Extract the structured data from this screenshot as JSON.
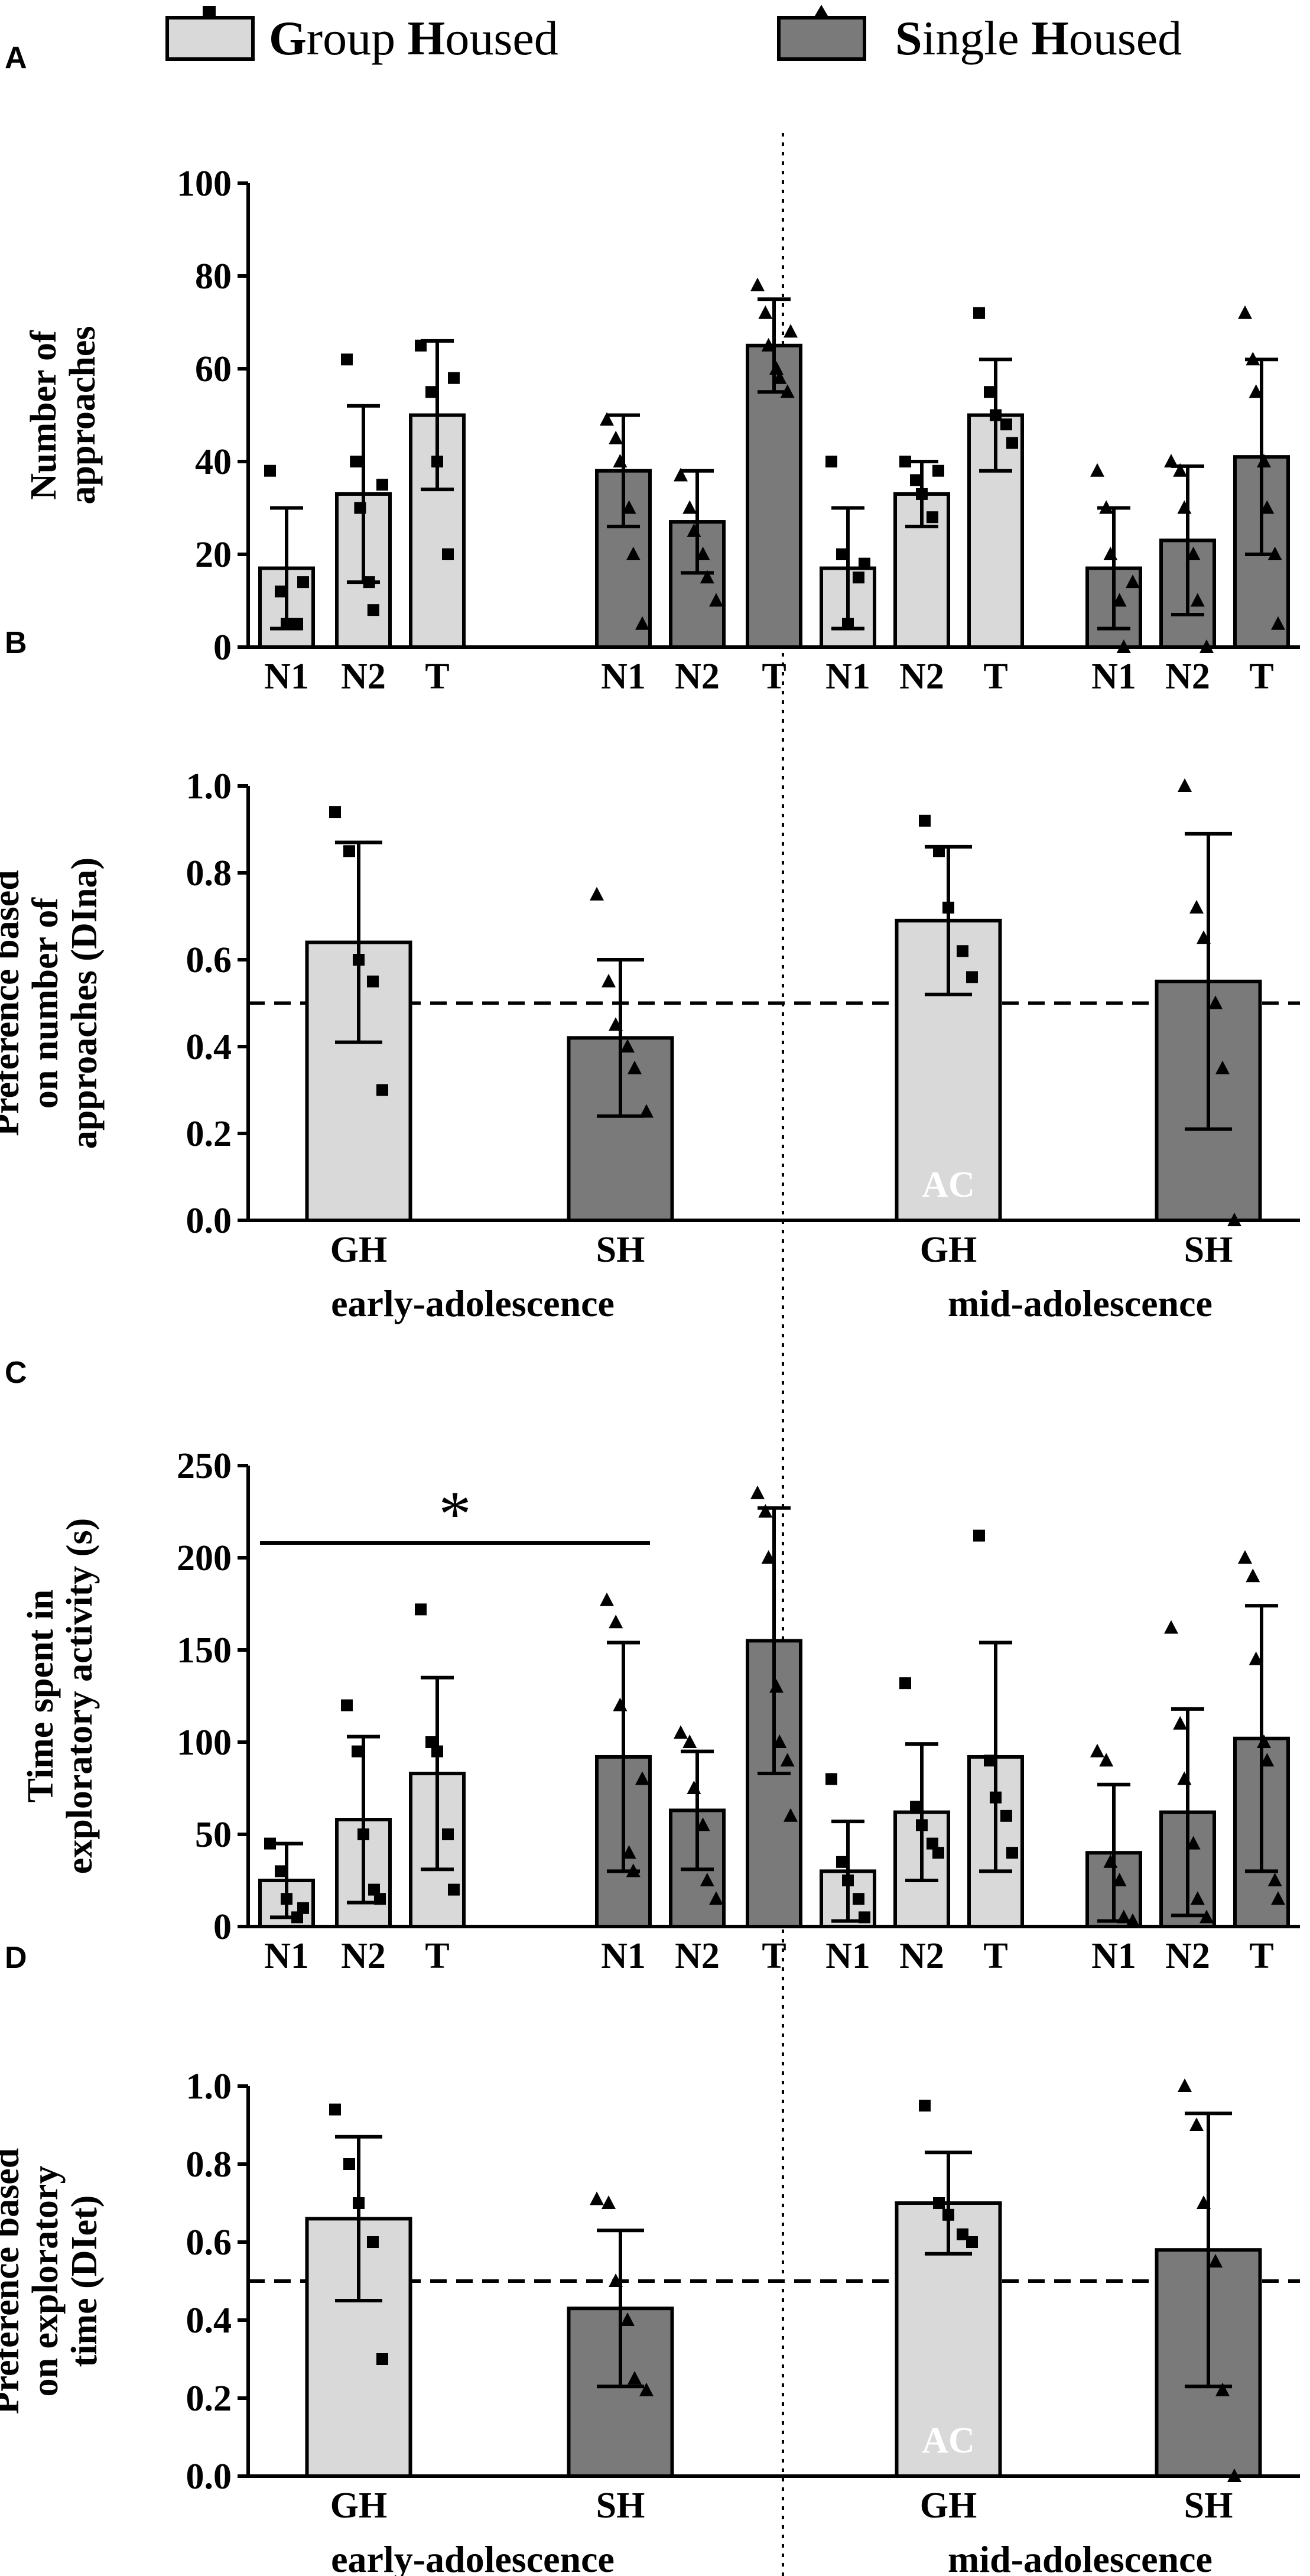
{
  "legend": {
    "gh_label_parts": [
      "G",
      "roup ",
      "H",
      "oused"
    ],
    "sh_label_parts": [
      "S",
      "ingle ",
      "H",
      "oused"
    ]
  },
  "colors": {
    "gh_fill": "#d9d9d9",
    "sh_fill": "#7a7a7a",
    "stroke": "#000000"
  },
  "chart_data": [
    {
      "panel": "A",
      "type": "bar",
      "ylabel": [
        "Number of",
        "approaches"
      ],
      "ylim": [
        0,
        100
      ],
      "yticks": [
        0,
        20,
        40,
        60,
        80,
        100
      ],
      "categories": [
        "N1",
        "N2",
        "T",
        "N1",
        "N2",
        "T",
        "N1",
        "N2",
        "T",
        "N1",
        "N2",
        "T"
      ],
      "groups": [
        "GH",
        "GH",
        "GH",
        "SH",
        "SH",
        "SH",
        "GH",
        "GH",
        "GH",
        "SH",
        "SH",
        "SH"
      ],
      "values": [
        17,
        33,
        50,
        38,
        27,
        65,
        17,
        33,
        50,
        17,
        23,
        41
      ],
      "sd": [
        13,
        19,
        16,
        12,
        11,
        10,
        13,
        7,
        12,
        13,
        16,
        21
      ],
      "points": [
        [
          38,
          12,
          5,
          5,
          14
        ],
        [
          62,
          40,
          30,
          14,
          8,
          35
        ],
        [
          65,
          55,
          40,
          20,
          58
        ],
        [
          49,
          45,
          40,
          30,
          20,
          5
        ],
        [
          37,
          30,
          25,
          20,
          15,
          10
        ],
        [
          78,
          72,
          65,
          60,
          58,
          55,
          68
        ],
        [
          40,
          20,
          5,
          15,
          18
        ],
        [
          40,
          36,
          33,
          28,
          38
        ],
        [
          72,
          55,
          50,
          48,
          44
        ],
        [
          38,
          30,
          20,
          10,
          0,
          14
        ],
        [
          40,
          38,
          30,
          20,
          10,
          0
        ],
        [
          72,
          62,
          55,
          40,
          30,
          20,
          5
        ]
      ],
      "marker": [
        "square",
        "square",
        "square",
        "triangle",
        "triangle",
        "triangle",
        "square",
        "square",
        "square",
        "triangle",
        "triangle",
        "triangle"
      ],
      "annotations": []
    },
    {
      "panel": "B",
      "type": "bar",
      "ylabel": [
        "Preference based",
        "on number of",
        "approaches (DIna)"
      ],
      "ylim": [
        0,
        1
      ],
      "yticks": [
        "0.0",
        "0.2",
        "0.4",
        "0.6",
        "0.8",
        "1.0"
      ],
      "categories": [
        "GH",
        "SH",
        "GH",
        "SH"
      ],
      "groups": [
        "GH",
        "SH",
        "GH",
        "SH"
      ],
      "values": [
        0.64,
        0.42,
        0.69,
        0.55
      ],
      "sd": [
        0.23,
        0.18,
        0.17,
        0.34
      ],
      "points": [
        [
          0.94,
          0.85,
          0.6,
          0.55,
          0.3
        ],
        [
          0.75,
          0.55,
          0.45,
          0.4,
          0.35,
          0.25
        ],
        [
          0.92,
          0.85,
          0.72,
          0.62,
          0.56
        ],
        [
          1.0,
          0.72,
          0.65,
          0.5,
          0.35,
          0.0
        ]
      ],
      "marker": [
        "square",
        "triangle",
        "square",
        "triangle"
      ],
      "reference_line": 0.5,
      "bar_text": [
        "",
        "",
        "AC",
        ""
      ],
      "group_labels": [
        "early-adolescence",
        "mid-adolescence"
      ]
    },
    {
      "panel": "C",
      "type": "bar",
      "ylabel": [
        "Time spent in",
        "exploratory activity (s)"
      ],
      "ylim": [
        0,
        250
      ],
      "yticks": [
        0,
        50,
        100,
        150,
        200,
        250
      ],
      "categories": [
        "N1",
        "N2",
        "T",
        "N1",
        "N2",
        "T",
        "N1",
        "N2",
        "T",
        "N1",
        "N2",
        "T"
      ],
      "groups": [
        "GH",
        "GH",
        "GH",
        "SH",
        "SH",
        "SH",
        "GH",
        "GH",
        "GH",
        "SH",
        "SH",
        "SH"
      ],
      "values": [
        25,
        58,
        83,
        92,
        63,
        155,
        30,
        62,
        92,
        40,
        62,
        102
      ],
      "sd": [
        20,
        45,
        52,
        62,
        32,
        72,
        27,
        37,
        62,
        37,
        56,
        72
      ],
      "points": [
        [
          45,
          30,
          15,
          5,
          10
        ],
        [
          120,
          95,
          50,
          20,
          15
        ],
        [
          172,
          100,
          95,
          50,
          20
        ],
        [
          177,
          165,
          120,
          40,
          30,
          80
        ],
        [
          105,
          100,
          75,
          55,
          25,
          15
        ],
        [
          235,
          225,
          200,
          130,
          100,
          90,
          60
        ],
        [
          80,
          35,
          25,
          15,
          5
        ],
        [
          132,
          65,
          55,
          45,
          40
        ],
        [
          212,
          90,
          70,
          60,
          40
        ],
        [
          95,
          90,
          35,
          25,
          5,
          3
        ],
        [
          162,
          110,
          80,
          45,
          15,
          5
        ],
        [
          200,
          190,
          145,
          100,
          90,
          25,
          15
        ]
      ],
      "marker": [
        "square",
        "square",
        "square",
        "triangle",
        "triangle",
        "triangle",
        "square",
        "square",
        "square",
        "triangle",
        "triangle",
        "triangle"
      ],
      "annotations": [
        {
          "type": "significance",
          "from": 0,
          "to": 3,
          "y": 208,
          "label": "*"
        }
      ]
    },
    {
      "panel": "D",
      "type": "bar",
      "ylabel": [
        "Preference based",
        "on exploratory",
        "time (DIet)"
      ],
      "ylim": [
        0,
        1
      ],
      "yticks": [
        "0.0",
        "0.2",
        "0.4",
        "0.6",
        "0.8",
        "1.0"
      ],
      "categories": [
        "GH",
        "SH",
        "GH",
        "SH"
      ],
      "groups": [
        "GH",
        "SH",
        "GH",
        "SH"
      ],
      "values": [
        0.66,
        0.43,
        0.7,
        0.58
      ],
      "sd": [
        0.21,
        0.2,
        0.13,
        0.35
      ],
      "points": [
        [
          0.94,
          0.8,
          0.7,
          0.6,
          0.3
        ],
        [
          0.71,
          0.7,
          0.5,
          0.4,
          0.25,
          0.22
        ],
        [
          0.95,
          0.7,
          0.67,
          0.62,
          0.6
        ],
        [
          1.0,
          0.9,
          0.7,
          0.55,
          0.22,
          0.0
        ]
      ],
      "marker": [
        "square",
        "triangle",
        "square",
        "triangle"
      ],
      "reference_line": 0.5,
      "bar_text": [
        "",
        "",
        "AC",
        ""
      ],
      "group_labels": [
        "early-adolescence",
        "mid-adolescence"
      ]
    }
  ]
}
